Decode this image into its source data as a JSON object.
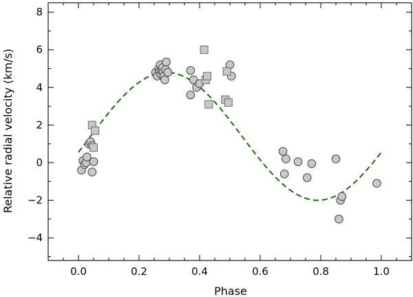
{
  "chart_data": {
    "type": "scatter",
    "title": "",
    "xlabel": "Phase",
    "ylabel": "Relative radial velocity  (km/s)",
    "xlim": [
      -0.1,
      1.1
    ],
    "ylim": [
      -5.2,
      8.5
    ],
    "x_ticks": [
      0.0,
      0.2,
      0.4,
      0.6,
      0.8,
      1.0
    ],
    "x_tick_labels": [
      "0.0",
      "0.2",
      "0.4",
      "0.6",
      "0.8",
      "1.0"
    ],
    "y_ticks": [
      -4,
      -2,
      0,
      2,
      4,
      6,
      8
    ],
    "y_tick_labels": [
      "−4",
      "−2",
      "0",
      "2",
      "4",
      "6",
      "8"
    ],
    "grid": false,
    "series": [
      {
        "marker": "circle",
        "color": "#c8c8c8",
        "points": [
          [
            0.01,
            -0.4
          ],
          [
            0.015,
            0.1
          ],
          [
            0.02,
            -0.1
          ],
          [
            0.025,
            0.0
          ],
          [
            0.028,
            0.3
          ],
          [
            0.035,
            1.0
          ],
          [
            0.04,
            1.1
          ],
          [
            0.045,
            0.9
          ],
          [
            0.045,
            -0.5
          ],
          [
            0.05,
            0.05
          ],
          [
            0.255,
            4.8
          ],
          [
            0.26,
            4.6
          ],
          [
            0.265,
            5.0
          ],
          [
            0.268,
            4.85
          ],
          [
            0.27,
            5.2
          ],
          [
            0.272,
            4.7
          ],
          [
            0.275,
            4.9
          ],
          [
            0.278,
            5.05
          ],
          [
            0.28,
            4.8
          ],
          [
            0.282,
            4.6
          ],
          [
            0.285,
            4.4
          ],
          [
            0.288,
            4.95
          ],
          [
            0.29,
            5.35
          ],
          [
            0.295,
            4.8
          ],
          [
            0.37,
            4.9
          ],
          [
            0.37,
            3.6
          ],
          [
            0.38,
            4.4
          ],
          [
            0.39,
            4.0
          ],
          [
            0.4,
            4.2
          ],
          [
            0.5,
            5.2
          ],
          [
            0.505,
            4.6
          ],
          [
            0.675,
            0.6
          ],
          [
            0.68,
            -0.6
          ],
          [
            0.685,
            0.2
          ],
          [
            0.725,
            0.05
          ],
          [
            0.755,
            -0.8
          ],
          [
            0.77,
            -0.05
          ],
          [
            0.85,
            0.2
          ],
          [
            0.86,
            -3.0
          ],
          [
            0.865,
            -2.0
          ],
          [
            0.87,
            -1.8
          ],
          [
            0.985,
            -1.1
          ]
        ]
      },
      {
        "marker": "square",
        "color": "#c8c8c8",
        "points": [
          [
            0.045,
            2.0
          ],
          [
            0.05,
            0.8
          ],
          [
            0.055,
            1.7
          ],
          [
            0.415,
            6.0
          ],
          [
            0.42,
            4.4
          ],
          [
            0.425,
            4.6
          ],
          [
            0.43,
            3.1
          ],
          [
            0.485,
            3.35
          ],
          [
            0.49,
            4.85
          ],
          [
            0.495,
            3.2
          ]
        ]
      }
    ],
    "fit": {
      "style": "dashed",
      "color": "#1a6e0a",
      "offset": 1.4,
      "amplitude": 3.4,
      "phase_of_max": 0.29,
      "x_start": 0.0,
      "x_end": 1.0
    }
  }
}
